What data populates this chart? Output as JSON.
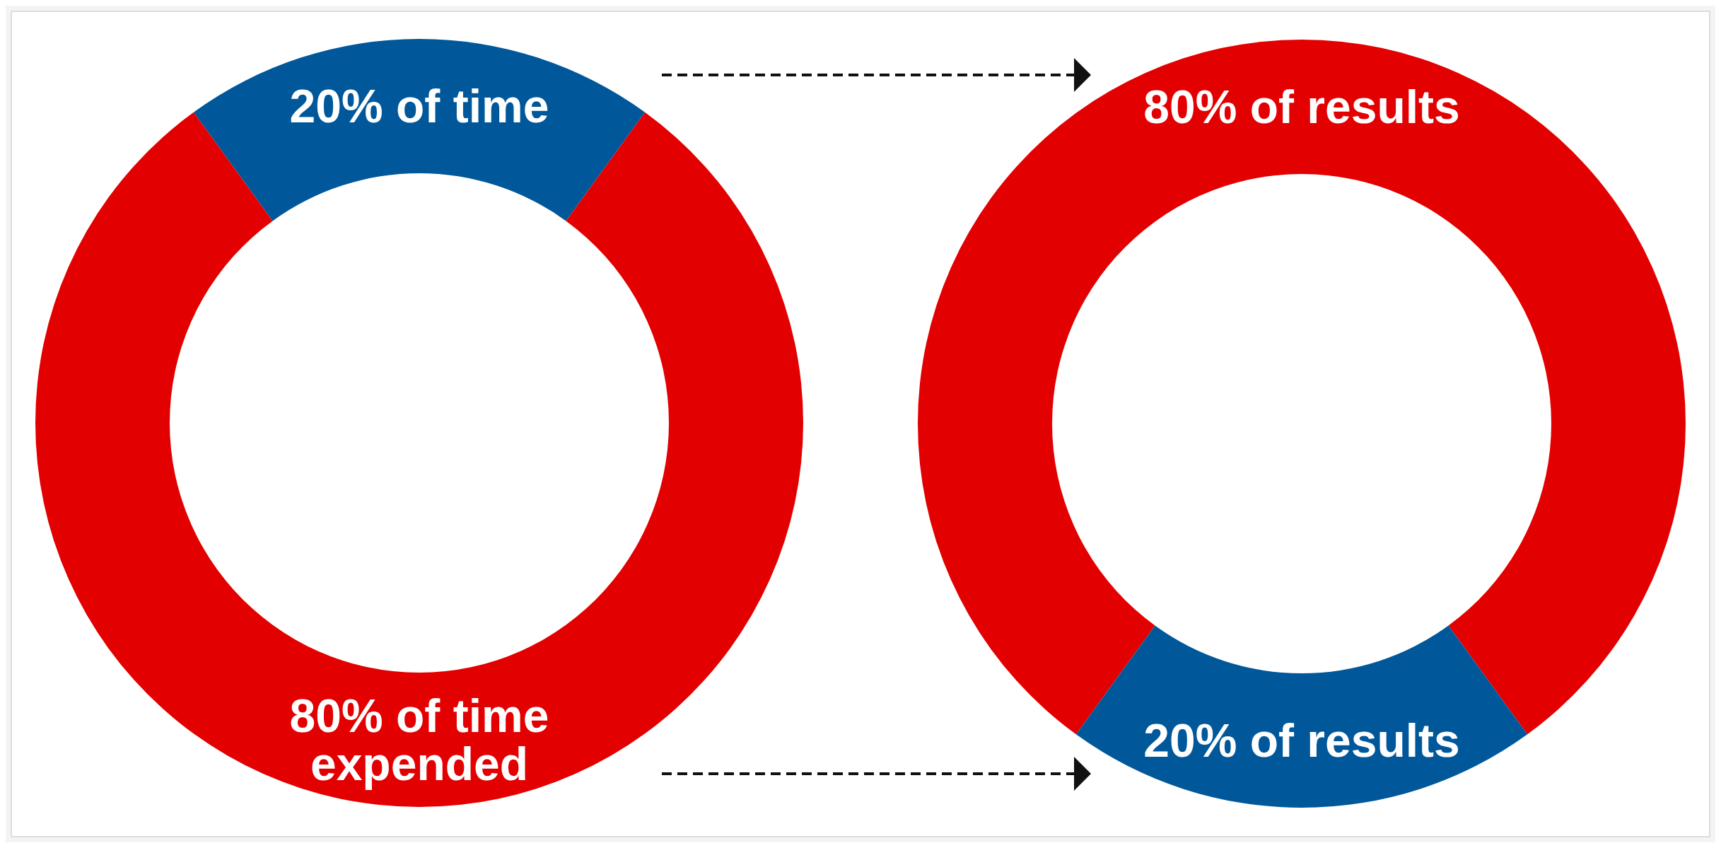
{
  "chart_data": [
    {
      "type": "donut",
      "categories": [
        "20% of time",
        "80% of time expended"
      ],
      "values": [
        20,
        80
      ],
      "colors": [
        "#00589b",
        "#e30000"
      ]
    },
    {
      "type": "donut",
      "categories": [
        "80% of results",
        "20% of results"
      ],
      "values": [
        80,
        20
      ],
      "colors": [
        "#e30000",
        "#00589b"
      ]
    }
  ]
}
